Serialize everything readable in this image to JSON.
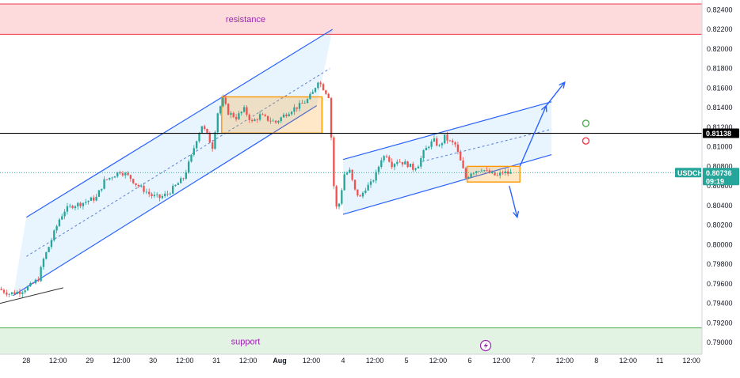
{
  "chart_data": {
    "type": "candlestick",
    "symbol": "USDCHF",
    "last_price": "0.80736",
    "countdown": "09:19",
    "marked_level": "0.81138",
    "y_axis": {
      "range": [
        0.7888,
        0.825
      ],
      "ticks": [
        "0.82400",
        "0.82200",
        "0.82000",
        "0.81800",
        "0.81600",
        "0.81400",
        "0.81200",
        "0.81000",
        "0.80800",
        "0.80600",
        "0.80400",
        "0.80200",
        "0.80000",
        "0.79800",
        "0.79600",
        "0.79400",
        "0.79200",
        "0.79000"
      ]
    },
    "x_axis": {
      "range_hours": [
        -10,
        256
      ],
      "ticks": [
        {
          "label": "28",
          "hour": 0
        },
        {
          "label": "12:00",
          "hour": 12
        },
        {
          "label": "29",
          "hour": 24
        },
        {
          "label": "12:00",
          "hour": 36
        },
        {
          "label": "30",
          "hour": 48
        },
        {
          "label": "12:00",
          "hour": 60
        },
        {
          "label": "31",
          "hour": 72
        },
        {
          "label": "12:00",
          "hour": 84
        },
        {
          "label": "Aug",
          "hour": 96
        },
        {
          "label": "12:00",
          "hour": 108
        },
        {
          "label": "4",
          "hour": 120
        },
        {
          "label": "12:00",
          "hour": 132
        },
        {
          "label": "5",
          "hour": 144
        },
        {
          "label": "12:00",
          "hour": 156
        },
        {
          "label": "6",
          "hour": 168
        },
        {
          "label": "12:00",
          "hour": 180
        },
        {
          "label": "7",
          "hour": 192
        },
        {
          "label": "12:00",
          "hour": 204
        },
        {
          "label": "8",
          "hour": 216
        },
        {
          "label": "12:00",
          "hour": 228
        },
        {
          "label": "11",
          "hour": 240
        },
        {
          "label": "12:00",
          "hour": 252
        }
      ]
    },
    "zones": [
      {
        "label": "resistance",
        "from": 0.8215,
        "to": 0.8246,
        "color": "#f23645"
      },
      {
        "label": "support",
        "from": 0.7888,
        "to": 0.7915,
        "color": "#4caf50"
      }
    ],
    "horizontal_line": {
      "price": 0.81138,
      "color": "#000000"
    },
    "price_path": [
      [
        -10,
        0.7955
      ],
      [
        -6,
        0.795
      ],
      [
        -2,
        0.7952
      ],
      [
        2,
        0.7958
      ],
      [
        5,
        0.7965
      ],
      [
        7,
        0.7985
      ],
      [
        9,
        0.7998
      ],
      [
        11,
        0.8012
      ],
      [
        13,
        0.8026
      ],
      [
        15,
        0.8035
      ],
      [
        18,
        0.804
      ],
      [
        21,
        0.8042
      ],
      [
        24,
        0.8045
      ],
      [
        27,
        0.8048
      ],
      [
        30,
        0.8065
      ],
      [
        33,
        0.807
      ],
      [
        36,
        0.8075
      ],
      [
        38,
        0.8072
      ],
      [
        40,
        0.8068
      ],
      [
        42,
        0.8062
      ],
      [
        44,
        0.8058
      ],
      [
        46,
        0.8054
      ],
      [
        48,
        0.805
      ],
      [
        51,
        0.8048
      ],
      [
        54,
        0.8052
      ],
      [
        57,
        0.806
      ],
      [
        60,
        0.8068
      ],
      [
        63,
        0.809
      ],
      [
        65,
        0.8108
      ],
      [
        67,
        0.8122
      ],
      [
        69,
        0.8112
      ],
      [
        71,
        0.81
      ],
      [
        73,
        0.8135
      ],
      [
        75,
        0.8148
      ],
      [
        77,
        0.8135
      ],
      [
        80,
        0.813
      ],
      [
        83,
        0.8138
      ],
      [
        86,
        0.8125
      ],
      [
        89,
        0.8132
      ],
      [
        92,
        0.8128
      ],
      [
        95,
        0.8125
      ],
      [
        98,
        0.8132
      ],
      [
        101,
        0.8138
      ],
      [
        104,
        0.8142
      ],
      [
        107,
        0.8148
      ],
      [
        109,
        0.8155
      ],
      [
        111,
        0.8168
      ],
      [
        113,
        0.816
      ],
      [
        115,
        0.8152
      ],
      [
        116,
        0.811
      ],
      [
        117,
        0.806
      ],
      [
        118,
        0.8038
      ],
      [
        119,
        0.8042
      ],
      [
        121,
        0.8072
      ],
      [
        123,
        0.8075
      ],
      [
        125,
        0.8055
      ],
      [
        127,
        0.8048
      ],
      [
        129,
        0.8058
      ],
      [
        131,
        0.8062
      ],
      [
        133,
        0.8072
      ],
      [
        135,
        0.8088
      ],
      [
        137,
        0.8092
      ],
      [
        139,
        0.8082
      ],
      [
        141,
        0.8086
      ],
      [
        143,
        0.8084
      ],
      [
        145,
        0.8082
      ],
      [
        147,
        0.8078
      ],
      [
        149,
        0.8082
      ],
      [
        151,
        0.8094
      ],
      [
        153,
        0.8102
      ],
      [
        155,
        0.8106
      ],
      [
        157,
        0.81
      ],
      [
        159,
        0.811
      ],
      [
        161,
        0.8105
      ],
      [
        163,
        0.8102
      ],
      [
        165,
        0.8085
      ],
      [
        167,
        0.8068
      ],
      [
        169,
        0.8074
      ],
      [
        171,
        0.8076
      ],
      [
        173,
        0.8078
      ],
      [
        175,
        0.8074
      ],
      [
        177,
        0.8072
      ],
      [
        179,
        0.807
      ],
      [
        181,
        0.8074
      ],
      [
        183,
        0.8073
      ]
    ],
    "annotations": {
      "rising_channel_1": {
        "lower": [
          [
            -5,
            0.7948
          ],
          [
            110,
            0.8142
          ]
        ],
        "upper": [
          [
            0,
            0.8028
          ],
          [
            116,
            0.822
          ]
        ],
        "mid": [
          [
            0,
            0.7988
          ],
          [
            115,
            0.818
          ]
        ]
      },
      "support_trendline": [
        [
          -10,
          0.794
        ],
        [
          14,
          0.7956
        ]
      ],
      "box_1": {
        "hour_from": 74,
        "hour_to": 112,
        "price_from": 0.8114,
        "price_to": 0.8151,
        "color": "#ff9800"
      },
      "rising_channel_2": {
        "lower": [
          [
            120,
            0.8031
          ],
          [
            199,
            0.8092
          ]
        ],
        "upper": [
          [
            120,
            0.8087
          ],
          [
            199,
            0.8146
          ]
        ],
        "mid": [
          [
            150,
            0.8085
          ],
          [
            199,
            0.8118
          ]
        ]
      },
      "box_2": {
        "hour_from": 167,
        "hour_to": 187,
        "price_from": 0.8064,
        "price_to": 0.808,
        "color": "#ff9800"
      },
      "arrows": [
        {
          "from": [
            187,
            0.808
          ],
          "to": [
            197,
            0.8142
          ]
        },
        {
          "from": [
            197,
            0.8142
          ],
          "to": [
            204,
            0.8166
          ]
        },
        {
          "from": [
            183,
            0.806
          ],
          "to": [
            186,
            0.8028
          ]
        }
      ],
      "markers": [
        {
          "hour": 212,
          "price": 0.8124,
          "color": "#4caf50"
        },
        {
          "hour": 212,
          "price": 0.8106,
          "color": "#f23645"
        }
      ]
    }
  }
}
